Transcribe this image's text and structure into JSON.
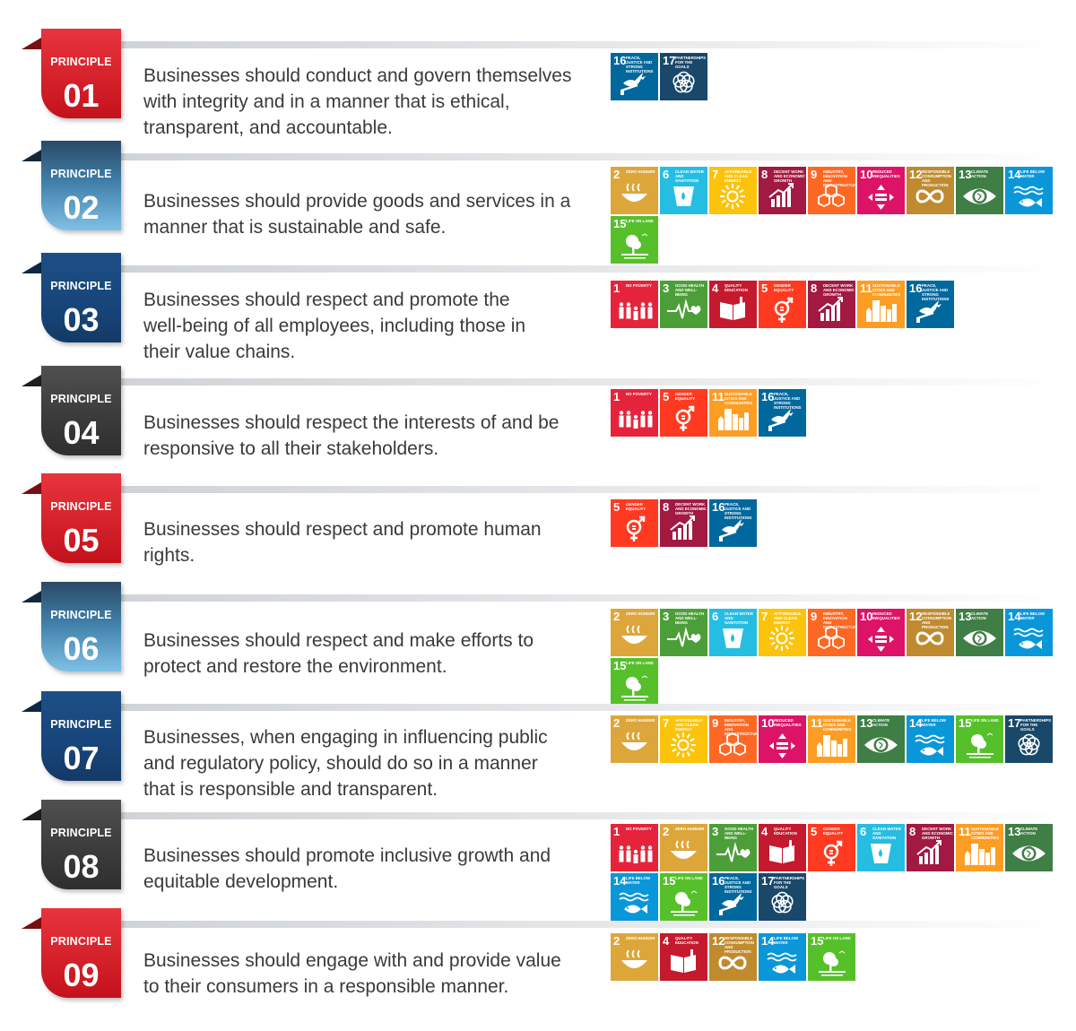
{
  "principle_label": "PRINCIPLE",
  "goal_catalog": {
    "1": {
      "title": "NO POVERTY",
      "color": "#E5243B",
      "icon": "family-icon"
    },
    "2": {
      "title": "ZERO HUNGER",
      "color": "#DDA63A",
      "icon": "bowl-icon"
    },
    "3": {
      "title": "GOOD HEALTH AND WELL-BEING",
      "color": "#4C9F38",
      "icon": "heartbeat-icon"
    },
    "4": {
      "title": "QUALITY EDUCATION",
      "color": "#C5192D",
      "icon": "book-icon"
    },
    "5": {
      "title": "GENDER EQUALITY",
      "color": "#FF3A21",
      "icon": "gender-icon"
    },
    "6": {
      "title": "CLEAN WATER AND SANITATION",
      "color": "#26BDE2",
      "icon": "water-drop-icon"
    },
    "7": {
      "title": "AFFORDABLE AND CLEAN ENERGY",
      "color": "#FCC30B",
      "icon": "sun-icon"
    },
    "8": {
      "title": "DECENT WORK AND ECONOMIC GROWTH",
      "color": "#A21942",
      "icon": "growth-chart-icon"
    },
    "9": {
      "title": "INDUSTRY, INNOVATION AND INFRASTRUCTURE",
      "color": "#FD6925",
      "icon": "cubes-icon"
    },
    "10": {
      "title": "REDUCED INEQUALITIES",
      "color": "#DD1367",
      "icon": "equality-icon"
    },
    "11": {
      "title": "SUSTAINABLE CITIES AND COMMUNITIES",
      "color": "#FD9D24",
      "icon": "city-icon"
    },
    "12": {
      "title": "RESPONSIBLE CONSUMPTION AND PRODUCTION",
      "color": "#BF8B2E",
      "icon": "infinity-icon"
    },
    "13": {
      "title": "CLIMATE ACTION",
      "color": "#3F7E44",
      "icon": "eye-globe-icon"
    },
    "14": {
      "title": "LIFE BELOW WATER",
      "color": "#0A97D9",
      "icon": "fish-icon"
    },
    "15": {
      "title": "LIFE ON LAND",
      "color": "#56C02B",
      "icon": "tree-icon"
    },
    "16": {
      "title": "PEACE, JUSTICE AND STRONG INSTITUTIONS",
      "color": "#00689D",
      "icon": "dove-icon"
    },
    "17": {
      "title": "PARTNERSHIPS FOR THE GOALS",
      "color": "#19486A",
      "icon": "rings-icon"
    }
  },
  "principles": [
    {
      "number": "01",
      "theme": "red",
      "text": [
        "Businesses should conduct and govern themselves",
        "with integrity and in a manner that is ethical,",
        "transparent, and accountable."
      ],
      "goals": [
        16,
        17
      ]
    },
    {
      "number": "02",
      "theme": "lightblue",
      "text": [
        "Businesses should provide goods and services in a",
        "manner that is sustainable and safe."
      ],
      "goals": [
        2,
        6,
        7,
        8,
        9,
        10,
        12,
        13,
        14,
        15
      ]
    },
    {
      "number": "03",
      "theme": "blue",
      "text": [
        "Businesses should respect and promote the",
        "well-being of all employees, including those in",
        "their value chains."
      ],
      "goals": [
        1,
        3,
        4,
        5,
        8,
        11,
        16
      ]
    },
    {
      "number": "04",
      "theme": "grey",
      "text": [
        "Businesses should respect the interests of and be",
        "responsive to all their stakeholders."
      ],
      "goals": [
        1,
        5,
        11,
        16
      ]
    },
    {
      "number": "05",
      "theme": "red",
      "text": [
        "Businesses should respect and promote human",
        "rights."
      ],
      "goals": [
        5,
        8,
        16
      ]
    },
    {
      "number": "06",
      "theme": "lightblue",
      "text": [
        "Businesses should respect and make efforts to",
        "protect and restore the environment."
      ],
      "goals": [
        2,
        3,
        6,
        7,
        9,
        10,
        12,
        13,
        14,
        15
      ]
    },
    {
      "number": "07",
      "theme": "blue",
      "text": [
        "Businesses, when engaging in influencing public",
        "and regulatory policy, should do so in a manner",
        "that is responsible and transparent."
      ],
      "goals": [
        2,
        7,
        9,
        10,
        11,
        13,
        14,
        15,
        17
      ]
    },
    {
      "number": "08",
      "theme": "grey",
      "text": [
        "Businesses should promote inclusive growth and",
        "equitable development."
      ],
      "goals": [
        1,
        2,
        3,
        4,
        5,
        6,
        8,
        11,
        13,
        14,
        15,
        16,
        17
      ]
    },
    {
      "number": "09",
      "theme": "red",
      "text": [
        "Businesses should engage with and provide value",
        "to their consumers in a responsible manner."
      ],
      "goals": [
        2,
        4,
        12,
        14,
        15
      ]
    }
  ]
}
